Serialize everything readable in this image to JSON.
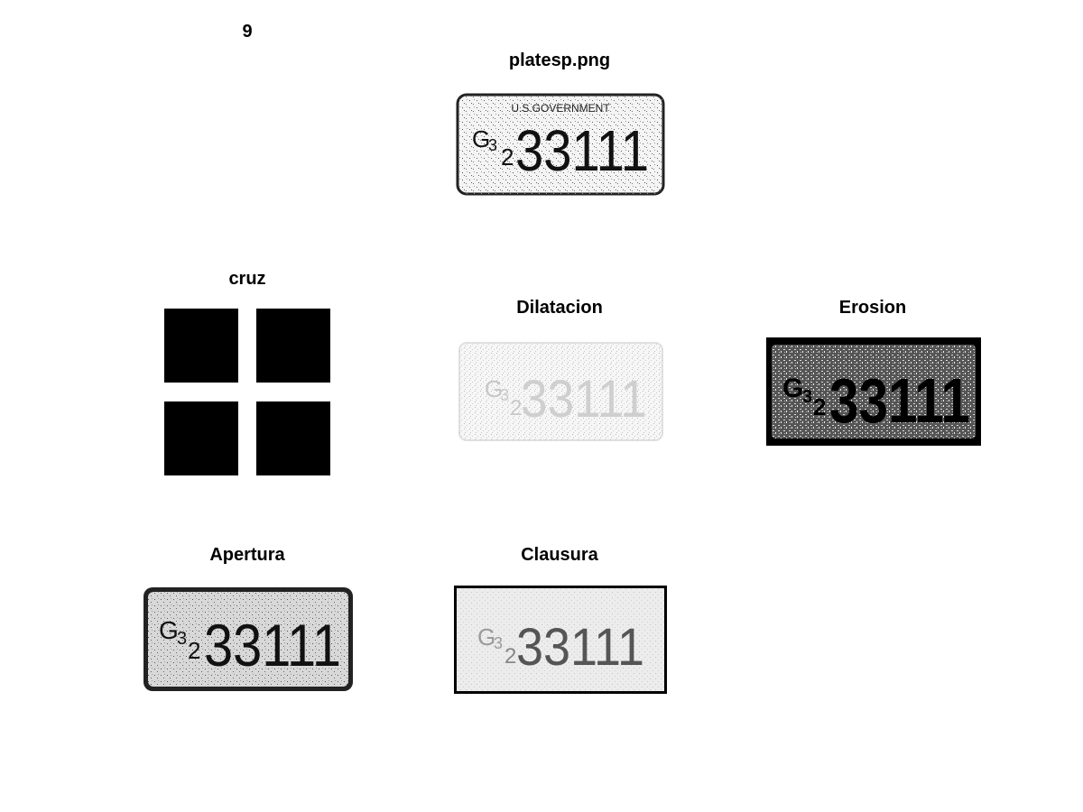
{
  "figure_number": "9",
  "panels": {
    "original": {
      "title": "platesp.png"
    },
    "cruz": {
      "title": "cruz"
    },
    "dilatacion": {
      "title": "Dilatacion"
    },
    "erosion": {
      "title": "Erosion"
    },
    "apertura": {
      "title": "Apertura"
    },
    "clausura": {
      "title": "Clausura"
    }
  },
  "plate": {
    "header": "U.S.GOVERNMENT",
    "prefix_main": "G",
    "prefix_sup": "3",
    "prefix_sub": "2",
    "number": "33111"
  },
  "colors": {
    "foreground": "#000000",
    "background": "#ffffff"
  }
}
